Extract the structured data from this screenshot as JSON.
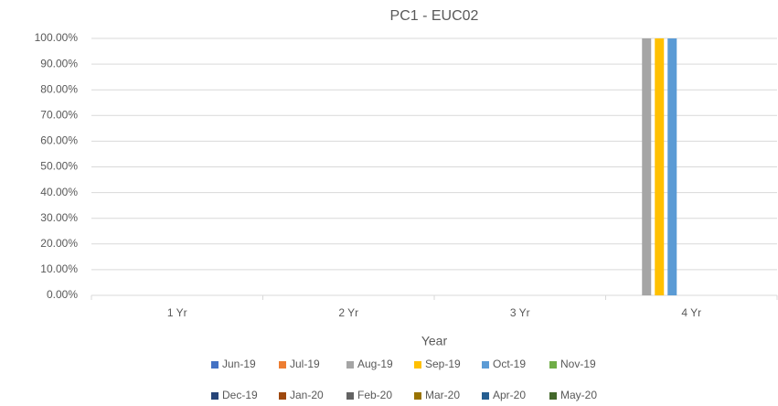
{
  "chart_data": {
    "type": "bar",
    "title": "PC1 - EUC02",
    "x_label": "Year",
    "categories": [
      "1 Yr",
      "2 Yr",
      "3 Yr",
      "4 Yr"
    ],
    "series": [
      {
        "name": "Jun-19",
        "color": "#4472c4",
        "values": [
          0,
          0,
          0,
          0
        ]
      },
      {
        "name": "Jul-19",
        "color": "#ed7d31",
        "values": [
          0,
          0,
          0,
          0
        ]
      },
      {
        "name": "Aug-19",
        "color": "#a5a5a5",
        "values": [
          0,
          0,
          0,
          100
        ]
      },
      {
        "name": "Sep-19",
        "color": "#ffc000",
        "values": [
          0,
          0,
          0,
          100
        ]
      },
      {
        "name": "Oct-19",
        "color": "#5b9bd5",
        "values": [
          0,
          0,
          0,
          100
        ]
      },
      {
        "name": "Nov-19",
        "color": "#70ad47",
        "values": [
          0,
          0,
          0,
          0
        ]
      },
      {
        "name": "Dec-19",
        "color": "#264478",
        "values": [
          0,
          0,
          0,
          0
        ]
      },
      {
        "name": "Jan-20",
        "color": "#9e480e",
        "values": [
          0,
          0,
          0,
          0
        ]
      },
      {
        "name": "Feb-20",
        "color": "#636363",
        "values": [
          0,
          0,
          0,
          0
        ]
      },
      {
        "name": "Mar-20",
        "color": "#997300",
        "values": [
          0,
          0,
          0,
          0
        ]
      },
      {
        "name": "Apr-20",
        "color": "#255e91",
        "values": [
          0,
          0,
          0,
          0
        ]
      },
      {
        "name": "May-20",
        "color": "#43682b",
        "values": [
          0,
          0,
          0,
          0
        ]
      }
    ],
    "ylim": [
      0,
      100
    ],
    "yticks": [
      {
        "value": 0,
        "label": "0.00%"
      },
      {
        "value": 10,
        "label": "10.00%"
      },
      {
        "value": 20,
        "label": "20.00%"
      },
      {
        "value": 30,
        "label": "30.00%"
      },
      {
        "value": 40,
        "label": "40.00%"
      },
      {
        "value": 50,
        "label": "50.00%"
      },
      {
        "value": 60,
        "label": "60.00%"
      },
      {
        "value": 70,
        "label": "70.00%"
      },
      {
        "value": 80,
        "label": "80.00%"
      },
      {
        "value": 90,
        "label": "90.00%"
      },
      {
        "value": 100,
        "label": "100.00%"
      }
    ],
    "grid": true,
    "legend": "bottom"
  }
}
